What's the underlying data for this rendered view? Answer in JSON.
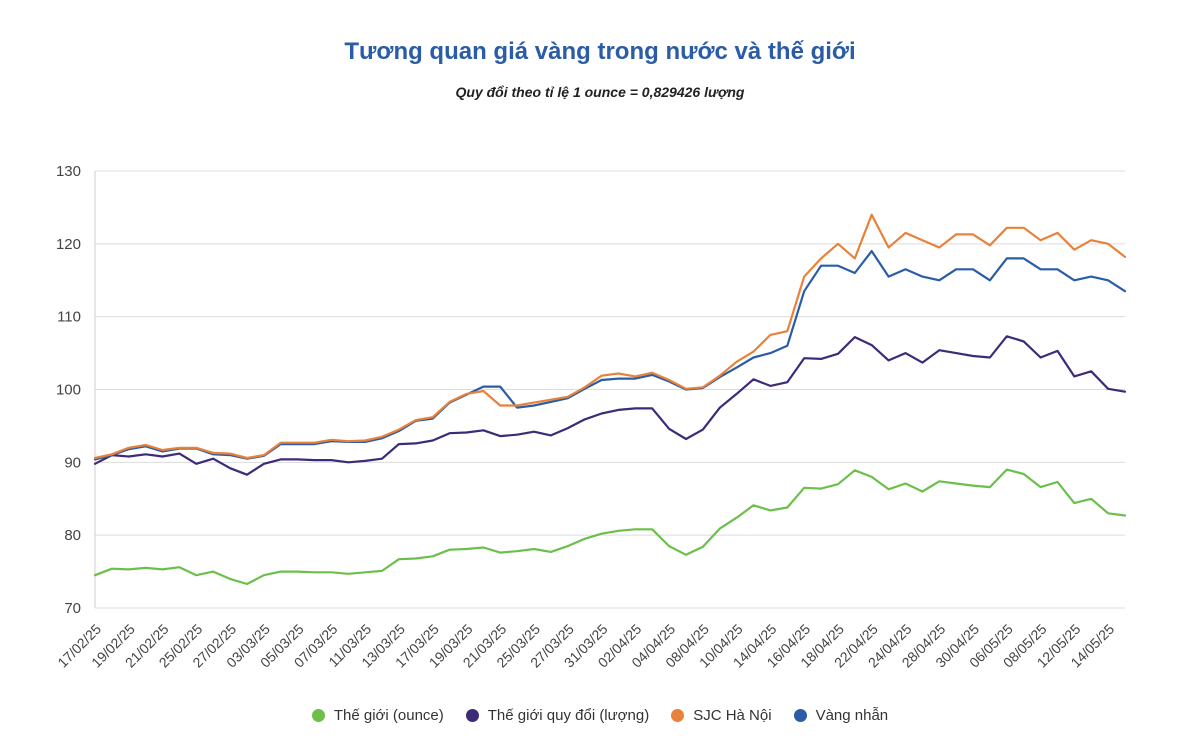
{
  "chart_data": {
    "type": "line",
    "title": "Tương quan giá vàng trong nước và thế giới",
    "subtitle": "Quy đổi theo tỉ lệ 1 ounce = 0,829426 lượng",
    "xlabel": "",
    "ylabel": "",
    "ylim": [
      70,
      130
    ],
    "yticks": [
      70,
      80,
      90,
      100,
      110,
      120,
      130
    ],
    "grid": true,
    "legend_position": "bottom",
    "x": [
      "17/02/25",
      "18/02/25",
      "19/02/25",
      "20/02/25",
      "21/02/25",
      "24/02/25",
      "25/02/25",
      "26/02/25",
      "27/02/25",
      "28/02/25",
      "03/03/25",
      "04/03/25",
      "05/03/25",
      "06/03/25",
      "07/03/25",
      "10/03/25",
      "11/03/25",
      "12/03/25",
      "13/03/25",
      "14/03/25",
      "17/03/25",
      "18/03/25",
      "19/03/25",
      "20/03/25",
      "21/03/25",
      "24/03/25",
      "25/03/25",
      "26/03/25",
      "27/03/25",
      "28/03/25",
      "31/03/25",
      "01/04/25",
      "02/04/25",
      "03/04/25",
      "04/04/25",
      "07/04/25",
      "08/04/25",
      "09/04/25",
      "10/04/25",
      "11/04/25",
      "14/04/25",
      "15/04/25",
      "16/04/25",
      "17/04/25",
      "18/04/25",
      "21/04/25",
      "22/04/25",
      "23/04/25",
      "24/04/25",
      "25/04/25",
      "28/04/25",
      "29/04/25",
      "30/04/25",
      "05/05/25",
      "06/05/25",
      "07/05/25",
      "08/05/25",
      "09/05/25",
      "12/05/25",
      "13/05/25",
      "14/05/25",
      "15/05/25"
    ],
    "xtick_labels": [
      "17/02/25",
      "19/02/25",
      "21/02/25",
      "25/02/25",
      "27/02/25",
      "03/03/25",
      "05/03/25",
      "07/03/25",
      "11/03/25",
      "13/03/25",
      "17/03/25",
      "19/03/25",
      "21/03/25",
      "25/03/25",
      "27/03/25",
      "31/03/25",
      "02/04/25",
      "04/04/25",
      "08/04/25",
      "10/04/25",
      "14/04/25",
      "16/04/25",
      "18/04/25",
      "22/04/25",
      "24/04/25",
      "28/04/25",
      "30/04/25",
      "06/05/25",
      "08/05/25",
      "12/05/25",
      "14/05/25"
    ],
    "series": [
      {
        "name": "Thế giới (ounce)",
        "color": "#6cbf4a",
        "values": [
          74.5,
          75.4,
          75.3,
          75.5,
          75.3,
          75.6,
          74.5,
          75.0,
          74.0,
          73.3,
          74.5,
          75.0,
          75.0,
          74.9,
          74.9,
          74.7,
          74.9,
          75.1,
          76.7,
          76.8,
          77.1,
          78.0,
          78.1,
          78.3,
          77.6,
          77.8,
          78.1,
          77.7,
          78.5,
          79.5,
          80.2,
          80.6,
          80.8,
          80.8,
          78.5,
          77.3,
          78.4,
          80.9,
          82.4,
          84.1,
          83.4,
          83.8,
          86.5,
          86.4,
          87.0,
          88.9,
          88.0,
          86.3,
          87.1,
          86.0,
          87.4,
          87.1,
          86.8,
          86.6,
          89.0,
          88.4,
          86.6,
          87.3,
          84.4,
          85.0,
          83.0,
          82.7
        ]
      },
      {
        "name": "Thế giới quy đổi (lượng)",
        "color": "#3d2a78",
        "values": [
          89.8,
          91.0,
          90.8,
          91.1,
          90.8,
          91.2,
          89.8,
          90.5,
          89.2,
          88.3,
          89.8,
          90.4,
          90.4,
          90.3,
          90.3,
          90.0,
          90.2,
          90.5,
          92.5,
          92.6,
          93.0,
          94.0,
          94.1,
          94.4,
          93.6,
          93.8,
          94.2,
          93.7,
          94.7,
          95.9,
          96.7,
          97.2,
          97.4,
          97.4,
          94.6,
          93.2,
          94.5,
          97.5,
          99.4,
          101.4,
          100.5,
          101.0,
          104.3,
          104.2,
          104.9,
          107.2,
          106.1,
          104.0,
          105.0,
          103.7,
          105.4,
          105.0,
          104.6,
          104.4,
          107.3,
          106.6,
          104.4,
          105.3,
          101.8,
          102.5,
          100.1,
          99.7
        ]
      },
      {
        "name": "SJC Hà Nội",
        "color": "#e8823a",
        "values": [
          90.6,
          91.1,
          92.0,
          92.4,
          91.7,
          92.0,
          92.0,
          91.3,
          91.2,
          90.6,
          91.0,
          92.7,
          92.7,
          92.7,
          93.1,
          92.9,
          93.0,
          93.5,
          94.5,
          95.8,
          96.2,
          98.3,
          99.4,
          99.8,
          97.8,
          97.8,
          98.2,
          98.6,
          99.0,
          100.3,
          101.9,
          102.2,
          101.8,
          102.3,
          101.3,
          100.1,
          100.3,
          101.9,
          103.8,
          105.2,
          107.5,
          108.0,
          115.5,
          118.0,
          120.0,
          118.0,
          124.0,
          119.5,
          121.5,
          120.5,
          119.5,
          121.3,
          121.3,
          119.8,
          122.2,
          122.2,
          120.5,
          121.5,
          119.2,
          120.5,
          120.0,
          118.2
        ]
      },
      {
        "name": "Vàng nhẫn",
        "color": "#2a5ca8",
        "values": [
          90.4,
          91.0,
          91.8,
          92.2,
          91.5,
          91.9,
          91.9,
          91.1,
          91.0,
          90.5,
          90.9,
          92.5,
          92.5,
          92.5,
          92.9,
          92.8,
          92.8,
          93.3,
          94.3,
          95.7,
          96.0,
          98.2,
          99.3,
          100.4,
          100.4,
          97.5,
          97.8,
          98.3,
          98.8,
          100.1,
          101.3,
          101.5,
          101.5,
          102.0,
          101.1,
          100.0,
          100.2,
          101.7,
          103.0,
          104.4,
          105.0,
          106.0,
          113.5,
          117.0,
          117.0,
          116.0,
          119.0,
          115.5,
          116.5,
          115.5,
          115.0,
          116.5,
          116.5,
          115.0,
          118.0,
          118.0,
          116.5,
          116.5,
          115.0,
          115.5,
          115.0,
          113.5
        ]
      }
    ]
  }
}
